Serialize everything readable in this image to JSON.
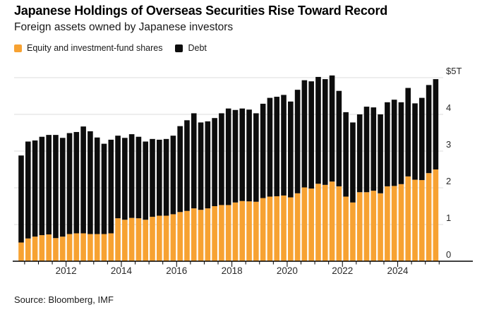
{
  "header": {
    "title": "Japanese Holdings of Overseas Securities Rise Toward Record",
    "subtitle": "Foreign assets owned by Japanese investors"
  },
  "legend": [
    {
      "label": "Equity and investment-fund shares",
      "color": "#F7A232"
    },
    {
      "label": "Debt",
      "color": "#0d0d0d"
    }
  ],
  "source": "Source: Bloomberg, IMF",
  "colors": {
    "equity": "#F7A232",
    "debt": "#0d0d0d",
    "gridline": "#dcdcdc",
    "axis": "#000000",
    "background": "#ffffff"
  },
  "chart_data": {
    "type": "bar",
    "stacked": true,
    "title": "Japanese Holdings of Overseas Securities Rise Toward Record",
    "subtitle": "Foreign assets owned by Japanese investors",
    "unit": "USD trillions",
    "ylim": [
      0,
      5
    ],
    "grid": "horizontal",
    "legend_position": "top-left",
    "categories": [
      "2010 Q2",
      "2010 Q3",
      "2010 Q4",
      "2011 Q1",
      "2011 Q2",
      "2011 Q3",
      "2011 Q4",
      "2012 Q1",
      "2012 Q2",
      "2012 Q3",
      "2012 Q4",
      "2013 Q1",
      "2013 Q2",
      "2013 Q3",
      "2013 Q4",
      "2014 Q1",
      "2014 Q2",
      "2014 Q3",
      "2014 Q4",
      "2015 Q1",
      "2015 Q2",
      "2015 Q3",
      "2015 Q4",
      "2016 Q1",
      "2016 Q2",
      "2016 Q3",
      "2016 Q4",
      "2017 Q1",
      "2017 Q2",
      "2017 Q3",
      "2017 Q4",
      "2018 Q1",
      "2018 Q2",
      "2018 Q3",
      "2018 Q4",
      "2019 Q1",
      "2019 Q2",
      "2019 Q3",
      "2019 Q4",
      "2020 Q1",
      "2020 Q2",
      "2020 Q3",
      "2020 Q4",
      "2021 Q1",
      "2021 Q2",
      "2021 Q3",
      "2021 Q4",
      "2022 Q1",
      "2022 Q2",
      "2022 Q3",
      "2022 Q4",
      "2023 Q1",
      "2023 Q2",
      "2023 Q3",
      "2023 Q4",
      "2024 Q1",
      "2024 Q2",
      "2024 Q3",
      "2024 Q4",
      "2025 Q1",
      "2025 Q2"
    ],
    "series": [
      {
        "name": "Equity and investment-fund shares",
        "color": "#F7A232",
        "values": [
          0.51,
          0.62,
          0.67,
          0.71,
          0.73,
          0.63,
          0.67,
          0.74,
          0.76,
          0.76,
          0.74,
          0.74,
          0.74,
          0.76,
          1.17,
          1.13,
          1.18,
          1.17,
          1.13,
          1.21,
          1.24,
          1.24,
          1.28,
          1.34,
          1.37,
          1.44,
          1.4,
          1.44,
          1.5,
          1.53,
          1.53,
          1.6,
          1.64,
          1.63,
          1.62,
          1.72,
          1.76,
          1.77,
          1.79,
          1.74,
          1.85,
          2.01,
          1.98,
          2.11,
          2.08,
          2.17,
          2.04,
          1.76,
          1.6,
          1.88,
          1.88,
          1.92,
          1.85,
          2.04,
          2.05,
          2.1,
          2.31,
          2.22,
          2.21,
          2.4,
          2.5
        ]
      },
      {
        "name": "Debt",
        "color": "#0d0d0d",
        "values": [
          2.37,
          2.64,
          2.62,
          2.68,
          2.71,
          2.81,
          2.69,
          2.75,
          2.76,
          2.91,
          2.8,
          2.63,
          2.46,
          2.55,
          2.25,
          2.23,
          2.28,
          2.22,
          2.13,
          2.12,
          2.07,
          2.09,
          2.14,
          2.34,
          2.47,
          2.59,
          2.38,
          2.37,
          2.4,
          2.5,
          2.63,
          2.52,
          2.52,
          2.5,
          2.41,
          2.57,
          2.69,
          2.71,
          2.74,
          2.61,
          2.82,
          2.92,
          2.92,
          2.91,
          2.88,
          2.89,
          2.6,
          2.3,
          2.18,
          2.12,
          2.33,
          2.27,
          2.15,
          2.29,
          2.35,
          2.23,
          2.41,
          2.08,
          2.24,
          2.4,
          2.46
        ]
      }
    ],
    "y_ticks": [
      {
        "value": 5,
        "label": "$5T"
      },
      {
        "value": 4,
        "label": "4"
      },
      {
        "value": 3,
        "label": "3"
      },
      {
        "value": 2,
        "label": "2"
      },
      {
        "value": 1,
        "label": "1"
      },
      {
        "value": 0,
        "label": "0"
      }
    ],
    "x_tick_years": [
      "2012",
      "2014",
      "2016",
      "2018",
      "2020",
      "2022",
      "2024"
    ]
  }
}
